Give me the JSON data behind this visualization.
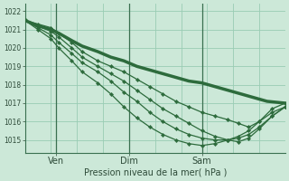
{
  "bg_color": "#cce8d8",
  "grid_color": "#99ccb4",
  "line_color": "#2d6b3c",
  "ylim": [
    1014.3,
    1022.4
  ],
  "ylabel_ticks": [
    1015,
    1016,
    1017,
    1018,
    1019,
    1020,
    1021,
    1022
  ],
  "xlabel": "Pression niveau de la mer( hPa )",
  "xtick_labels": [
    "Ven",
    "Dim",
    "Sam"
  ],
  "xtick_positions": [
    0.12,
    0.4,
    0.68
  ],
  "vline_positions": [
    0.12,
    0.4,
    0.68
  ],
  "series": [
    {
      "points": [
        [
          0.0,
          1021.5
        ],
        [
          0.05,
          1021.2
        ],
        [
          0.1,
          1021.0
        ],
        [
          0.13,
          1020.8
        ],
        [
          0.18,
          1020.4
        ],
        [
          0.22,
          1020.1
        ],
        [
          0.28,
          1019.8
        ],
        [
          0.33,
          1019.5
        ],
        [
          0.38,
          1019.3
        ],
        [
          0.43,
          1019.0
        ],
        [
          0.48,
          1018.8
        ],
        [
          0.53,
          1018.6
        ],
        [
          0.58,
          1018.4
        ],
        [
          0.63,
          1018.2
        ],
        [
          0.68,
          1018.1
        ],
        [
          0.73,
          1017.9
        ],
        [
          0.78,
          1017.7
        ],
        [
          0.83,
          1017.5
        ],
        [
          0.88,
          1017.3
        ],
        [
          0.93,
          1017.1
        ],
        [
          1.0,
          1017.0
        ]
      ],
      "lw": 2.5
    },
    {
      "points": [
        [
          0.0,
          1021.5
        ],
        [
          0.05,
          1021.3
        ],
        [
          0.1,
          1021.1
        ],
        [
          0.13,
          1020.8
        ],
        [
          0.18,
          1020.3
        ],
        [
          0.22,
          1019.8
        ],
        [
          0.28,
          1019.3
        ],
        [
          0.33,
          1019.0
        ],
        [
          0.38,
          1018.7
        ],
        [
          0.43,
          1018.3
        ],
        [
          0.48,
          1017.9
        ],
        [
          0.53,
          1017.5
        ],
        [
          0.58,
          1017.1
        ],
        [
          0.63,
          1016.8
        ],
        [
          0.68,
          1016.5
        ],
        [
          0.73,
          1016.3
        ],
        [
          0.78,
          1016.1
        ],
        [
          0.82,
          1015.9
        ],
        [
          0.86,
          1015.7
        ],
        [
          0.9,
          1016.0
        ],
        [
          0.95,
          1016.7
        ],
        [
          1.0,
          1017.0
        ]
      ],
      "lw": 0.9
    },
    {
      "points": [
        [
          0.0,
          1021.5
        ],
        [
          0.05,
          1021.2
        ],
        [
          0.1,
          1020.9
        ],
        [
          0.13,
          1020.6
        ],
        [
          0.18,
          1020.0
        ],
        [
          0.22,
          1019.5
        ],
        [
          0.28,
          1019.0
        ],
        [
          0.33,
          1018.6
        ],
        [
          0.38,
          1018.2
        ],
        [
          0.43,
          1017.7
        ],
        [
          0.48,
          1017.2
        ],
        [
          0.53,
          1016.7
        ],
        [
          0.58,
          1016.3
        ],
        [
          0.63,
          1015.9
        ],
        [
          0.68,
          1015.5
        ],
        [
          0.73,
          1015.2
        ],
        [
          0.78,
          1015.0
        ],
        [
          0.82,
          1014.9
        ],
        [
          0.86,
          1015.1
        ],
        [
          0.9,
          1015.6
        ],
        [
          0.95,
          1016.3
        ],
        [
          1.0,
          1016.8
        ]
      ],
      "lw": 0.9
    },
    {
      "points": [
        [
          0.0,
          1021.5
        ],
        [
          0.05,
          1021.1
        ],
        [
          0.1,
          1020.7
        ],
        [
          0.13,
          1020.3
        ],
        [
          0.18,
          1019.7
        ],
        [
          0.22,
          1019.2
        ],
        [
          0.28,
          1018.7
        ],
        [
          0.33,
          1018.2
        ],
        [
          0.38,
          1017.6
        ],
        [
          0.43,
          1017.1
        ],
        [
          0.48,
          1016.5
        ],
        [
          0.53,
          1016.0
        ],
        [
          0.58,
          1015.6
        ],
        [
          0.63,
          1015.3
        ],
        [
          0.68,
          1015.1
        ],
        [
          0.73,
          1015.0
        ],
        [
          0.78,
          1015.0
        ],
        [
          0.82,
          1015.1
        ],
        [
          0.86,
          1015.3
        ],
        [
          0.9,
          1015.7
        ],
        [
          0.95,
          1016.3
        ],
        [
          1.0,
          1016.8
        ]
      ],
      "lw": 0.9
    },
    {
      "points": [
        [
          0.0,
          1021.5
        ],
        [
          0.05,
          1021.0
        ],
        [
          0.1,
          1020.5
        ],
        [
          0.13,
          1020.0
        ],
        [
          0.18,
          1019.3
        ],
        [
          0.22,
          1018.7
        ],
        [
          0.28,
          1018.1
        ],
        [
          0.33,
          1017.5
        ],
        [
          0.38,
          1016.8
        ],
        [
          0.43,
          1016.2
        ],
        [
          0.48,
          1015.7
        ],
        [
          0.53,
          1015.3
        ],
        [
          0.58,
          1015.0
        ],
        [
          0.63,
          1014.8
        ],
        [
          0.68,
          1014.7
        ],
        [
          0.73,
          1014.8
        ],
        [
          0.78,
          1015.0
        ],
        [
          0.82,
          1015.2
        ],
        [
          0.86,
          1015.5
        ],
        [
          0.9,
          1016.0
        ],
        [
          0.95,
          1016.5
        ],
        [
          1.0,
          1016.8
        ]
      ],
      "lw": 0.9
    }
  ],
  "figsize": [
    3.2,
    2.0
  ],
  "dpi": 100
}
